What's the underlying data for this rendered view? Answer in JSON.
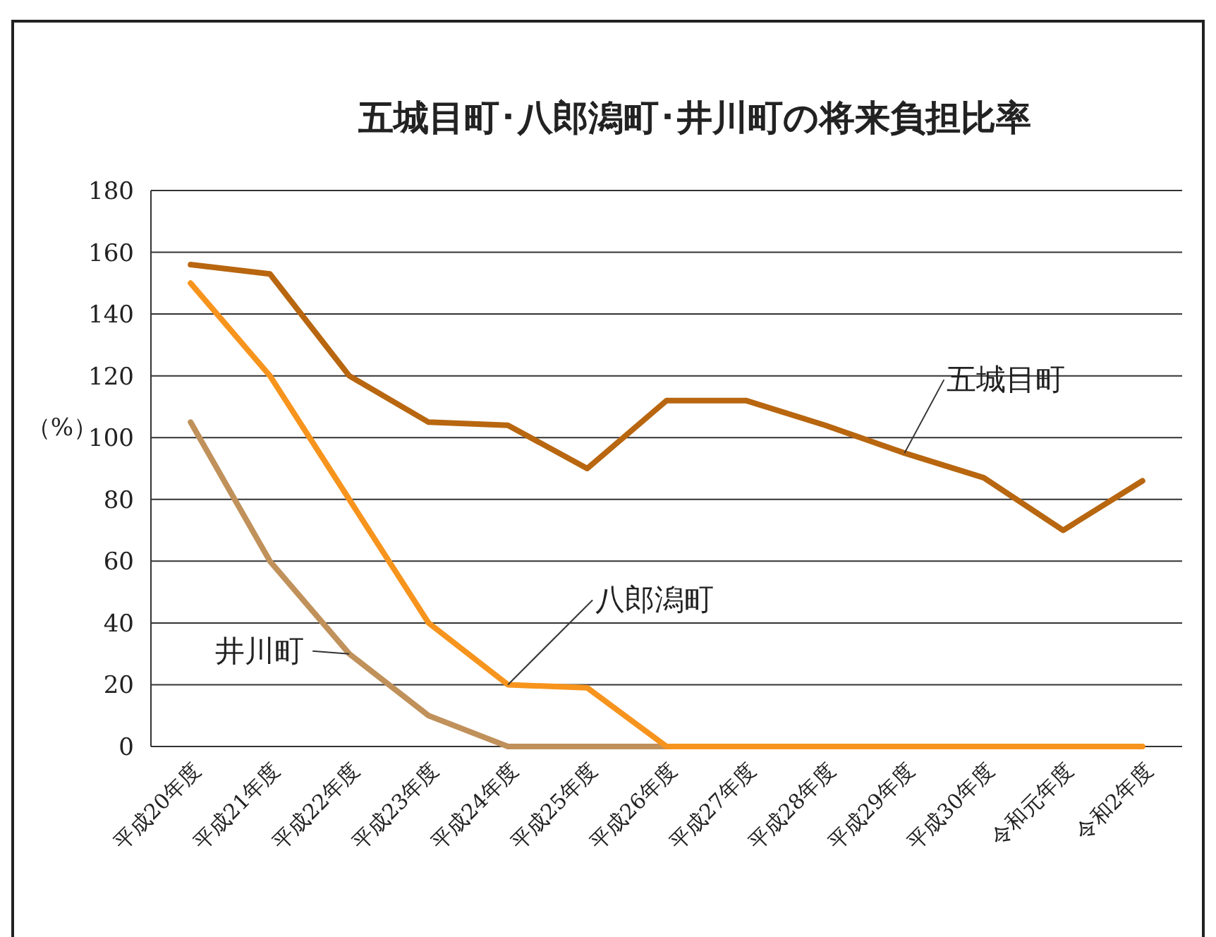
{
  "chart_data": {
    "type": "line",
    "title": "五城目町･八郎潟町･井川町の将来負担比率",
    "ylabel": "（%）",
    "categories": [
      "平成20年度",
      "平成21年度",
      "平成22年度",
      "平成23年度",
      "平成24年度",
      "平成25年度",
      "平成26年度",
      "平成27年度",
      "平成28年度",
      "平成29年度",
      "平成30年度",
      "令和元年度",
      "令和2年度"
    ],
    "series": [
      {
        "name": "五城目町",
        "color": "#b8660f",
        "values": [
          156,
          153,
          120,
          105,
          104,
          90,
          112,
          112,
          104,
          95,
          87,
          70,
          86
        ]
      },
      {
        "name": "八郎潟町",
        "color": "#f7941d",
        "values": [
          150,
          120,
          80,
          40,
          20,
          19,
          0,
          0,
          0,
          0,
          0,
          0,
          0
        ]
      },
      {
        "name": "井川町",
        "color": "#c0915b",
        "values": [
          105,
          60,
          30,
          10,
          0,
          0,
          0,
          null,
          null,
          null,
          null,
          null,
          null
        ]
      }
    ],
    "ylim": [
      0,
      180
    ],
    "yticks": [
      0,
      20,
      40,
      60,
      80,
      100,
      120,
      140,
      160,
      180
    ],
    "grid": "y",
    "legend": false,
    "marker": "none",
    "line_style": "solid"
  }
}
